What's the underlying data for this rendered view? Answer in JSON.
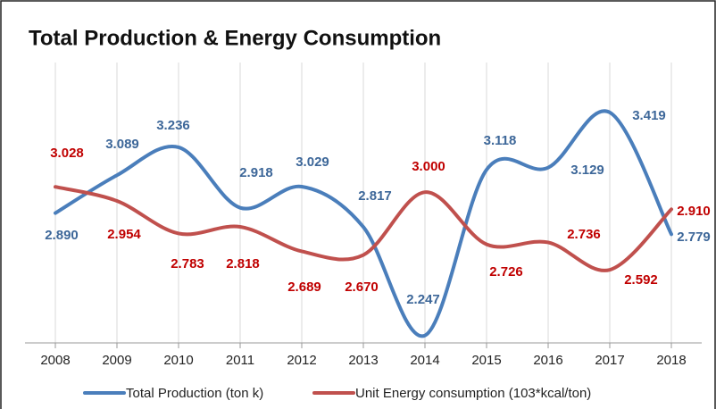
{
  "chart_data": {
    "type": "line",
    "title": "Total Production & Energy Consumption",
    "categories": [
      "2008",
      "2009",
      "2010",
      "2011",
      "2012",
      "2013",
      "2014",
      "2015",
      "2016",
      "2017",
      "2018"
    ],
    "series": [
      {
        "name": "Total Production (ton k)",
        "color": "#4a7ebb",
        "label_color": "#3d6799",
        "values": [
          2.89,
          3.089,
          3.236,
          2.918,
          3.029,
          2.817,
          2.247,
          3.118,
          3.129,
          3.419,
          2.779
        ],
        "value_labels": [
          "2.890",
          "3.089",
          "3.236",
          "2.918",
          "3.029",
          "2.817",
          "2.247",
          "3.118",
          "3.129",
          "3.419",
          "2.779"
        ]
      },
      {
        "name": "Unit Energy consumption (103*kcal/ton)",
        "color": "#c0504d",
        "label_color": "#c00000",
        "values": [
          3.028,
          2.954,
          2.783,
          2.818,
          2.689,
          2.67,
          3.0,
          2.726,
          2.736,
          2.592,
          2.91
        ],
        "value_labels": [
          "3.028",
          "2.954",
          "2.783",
          "2.818",
          "2.689",
          "2.670",
          "3.000",
          "2.726",
          "2.736",
          "2.592",
          "2.910"
        ]
      }
    ],
    "ylim": [
      2.2,
      3.7
    ],
    "grid": "x",
    "legend": "bottom",
    "smooth": true
  }
}
